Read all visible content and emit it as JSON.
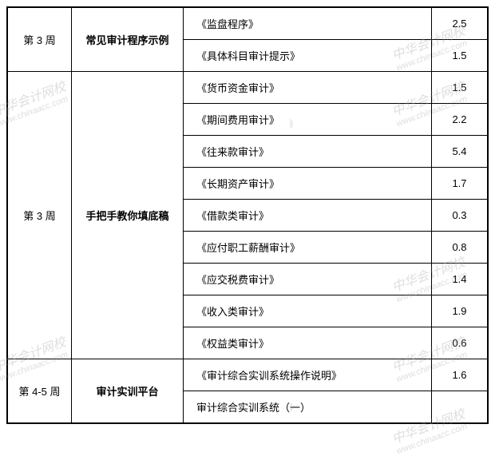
{
  "watermark": {
    "text": "中华会计网校",
    "url": "www.chinaacc.com"
  },
  "table": {
    "rows": [
      {
        "week": "第 3 周",
        "title": "常见审计程序示例",
        "content": "《监盘程序》",
        "value": "2.5",
        "weekRowspan": 2,
        "titleRowspan": 2
      },
      {
        "content": "《具体科目审计提示》",
        "value": "1.5"
      },
      {
        "week": "第 3 周",
        "title": "手把手教你填底稿",
        "content": "《货币资金审计》",
        "value": "1.5",
        "weekRowspan": 9,
        "titleRowspan": 9
      },
      {
        "content": "《期间费用审计》",
        "value": "2.2"
      },
      {
        "content": "《往来款审计》",
        "value": "5.4"
      },
      {
        "content": "《长期资产审计》",
        "value": "1.7"
      },
      {
        "content": "《借款类审计》",
        "value": "0.3"
      },
      {
        "content": "《应付职工薪酬审计》",
        "value": "0.8"
      },
      {
        "content": "《应交税费审计》",
        "value": "1.4"
      },
      {
        "content": "《收入类审计》",
        "value": "1.9"
      },
      {
        "content": "《权益类审计》",
        "value": "0.6"
      },
      {
        "week": "第 4-5 周",
        "title": "审计实训平台",
        "content": "《审计综合实训系统操作说明》",
        "value": "1.6",
        "weekRowspan": 2,
        "titleRowspan": 2
      },
      {
        "content": "审计综合实训系统（一）",
        "value": ""
      }
    ]
  },
  "styling": {
    "border_color": "#000000",
    "background_color": "#ffffff",
    "text_color": "#000000",
    "font_size": 13,
    "watermark_color": "rgba(160,160,160,0.35)",
    "col_widths": {
      "week": 80,
      "title": 140,
      "value": 70
    }
  }
}
